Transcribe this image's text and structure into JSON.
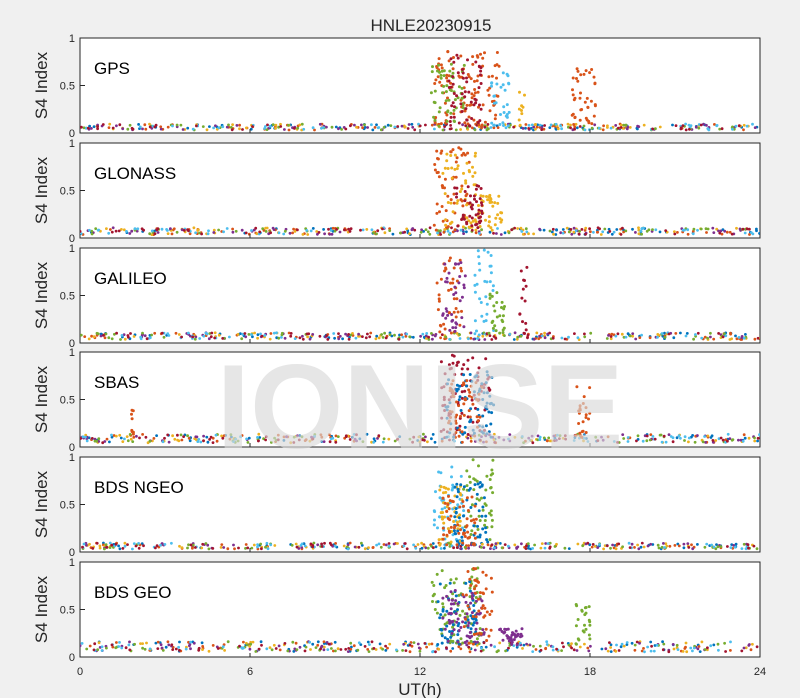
{
  "chart_data": {
    "type": "scatter",
    "title": "HNLE20230915",
    "xlabel": "UT(h)",
    "ylabel": "S4 Index",
    "xlim": [
      0,
      24
    ],
    "ylim": [
      0,
      1
    ],
    "xticks": [
      "0",
      "6",
      "12",
      "18",
      "24"
    ],
    "yticks": [
      "0",
      "0.5",
      "1"
    ],
    "watermark": "IONISE",
    "colors": [
      "#0072bd",
      "#d95319",
      "#edb120",
      "#7e2f8e",
      "#77ac30",
      "#4dbeee",
      "#a2142f"
    ],
    "panels": [
      {
        "label": "GPS",
        "baseline": 0.07,
        "bursts": [
          {
            "t0": 12.5,
            "t1": 14.8,
            "peak": 0.88,
            "color_index": 1
          },
          {
            "t0": 12.4,
            "t1": 13.6,
            "peak": 0.75,
            "color_index": 4
          },
          {
            "t0": 13.0,
            "t1": 14.2,
            "peak": 0.85,
            "color_index": 6
          },
          {
            "t0": 14.5,
            "t1": 15.2,
            "peak": 0.65,
            "color_index": 5
          },
          {
            "t0": 15.5,
            "t1": 15.7,
            "peak": 0.45,
            "color_index": 2
          },
          {
            "t0": 17.3,
            "t1": 18.2,
            "peak": 0.68,
            "color_index": 1
          }
        ]
      },
      {
        "label": "GLONASS",
        "baseline": 0.08,
        "bursts": [
          {
            "t0": 12.5,
            "t1": 13.8,
            "peak": 0.95,
            "color_index": 1
          },
          {
            "t0": 12.8,
            "t1": 14.0,
            "peak": 0.9,
            "color_index": 2
          },
          {
            "t0": 14.0,
            "t1": 14.9,
            "peak": 0.45,
            "color_index": 2
          },
          {
            "t0": 13.2,
            "t1": 14.2,
            "peak": 0.6,
            "color_index": 6
          }
        ]
      },
      {
        "label": "GALILEO",
        "baseline": 0.08,
        "bursts": [
          {
            "t0": 12.6,
            "t1": 13.5,
            "peak": 0.9,
            "color_index": 1
          },
          {
            "t0": 12.8,
            "t1": 13.6,
            "peak": 0.85,
            "color_index": 3
          },
          {
            "t0": 13.9,
            "t1": 14.6,
            "peak": 0.98,
            "color_index": 5
          },
          {
            "t0": 14.4,
            "t1": 15.0,
            "peak": 0.55,
            "color_index": 4
          },
          {
            "t0": 15.5,
            "t1": 15.8,
            "peak": 0.8,
            "color_index": 6
          }
        ]
      },
      {
        "label": "SBAS",
        "baseline": 0.1,
        "bursts": [
          {
            "t0": 12.7,
            "t1": 14.5,
            "peak": 0.98,
            "color_index": 6
          },
          {
            "t0": 12.9,
            "t1": 14.6,
            "peak": 0.8,
            "color_index": 0
          },
          {
            "t0": 13.0,
            "t1": 14.2,
            "peak": 0.7,
            "color_index": 1
          },
          {
            "t0": 17.5,
            "t1": 18.0,
            "peak": 0.65,
            "color_index": 1
          },
          {
            "t0": 1.8,
            "t1": 1.9,
            "peak": 0.4,
            "color_index": 1
          }
        ]
      },
      {
        "label": "BDS NGEO",
        "baseline": 0.07,
        "bursts": [
          {
            "t0": 12.5,
            "t1": 13.6,
            "peak": 0.9,
            "color_index": 5
          },
          {
            "t0": 12.6,
            "t1": 13.5,
            "peak": 0.7,
            "color_index": 2
          },
          {
            "t0": 13.5,
            "t1": 14.6,
            "peak": 0.98,
            "color_index": 4
          },
          {
            "t0": 13.2,
            "t1": 14.4,
            "peak": 0.75,
            "color_index": 0
          },
          {
            "t0": 12.8,
            "t1": 14.0,
            "peak": 0.6,
            "color_index": 1
          }
        ]
      },
      {
        "label": "BDS GEO",
        "baseline": 0.12,
        "bursts": [
          {
            "t0": 12.4,
            "t1": 14.2,
            "peak": 0.95,
            "color_index": 4
          },
          {
            "t0": 12.6,
            "t1": 14.0,
            "peak": 0.8,
            "color_index": 0
          },
          {
            "t0": 12.8,
            "t1": 14.3,
            "peak": 0.7,
            "color_index": 3
          },
          {
            "t0": 13.5,
            "t1": 14.6,
            "peak": 0.98,
            "color_index": 1
          },
          {
            "t0": 14.8,
            "t1": 15.6,
            "peak": 0.3,
            "color_index": 3
          },
          {
            "t0": 17.5,
            "t1": 18.0,
            "peak": 0.6,
            "color_index": 4
          }
        ]
      }
    ]
  }
}
